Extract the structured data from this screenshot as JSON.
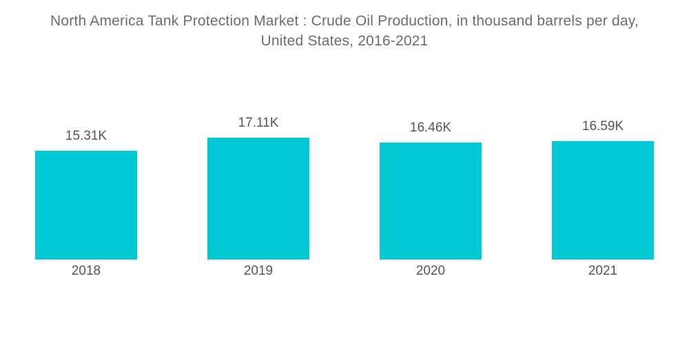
{
  "header": {
    "title_line1": "North America Tank Protection Market : Crude Oil Production, in thousand barrels per day,",
    "title_line2": "United States, 2016-2021"
  },
  "chart_data": {
    "type": "bar",
    "title": "North America Tank Protection Market : Crude Oil Production, in thousand barrels per day, United States, 2016-2021",
    "categories": [
      "2018",
      "2019",
      "2020",
      "2021"
    ],
    "values": [
      15310,
      17110,
      16460,
      16590
    ],
    "value_labels": [
      "15.31K",
      "17.11K",
      "16.46K",
      "16.59K"
    ],
    "unit": "thousand barrels per day",
    "xlabel": "",
    "ylabel": "",
    "ylim": [
      0,
      17110
    ],
    "grid": false,
    "legend": "none",
    "axes_visible": false,
    "bar_color": "#00C9D3",
    "label_color": "#55565A",
    "title_color": "#6C6D71",
    "background_color": "#FFFFFF"
  }
}
